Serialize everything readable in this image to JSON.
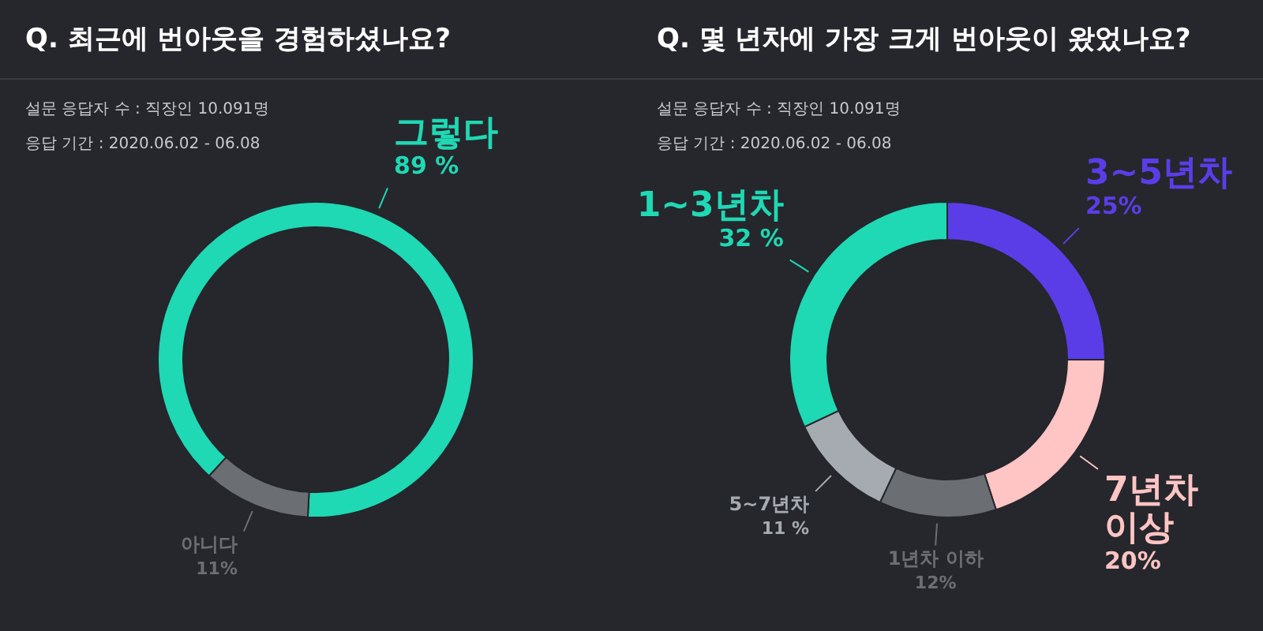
{
  "chart_data": [
    {
      "type": "donut",
      "title": "Q. 최근에 번아웃을 경험하셨나요?",
      "subtitle": "설문 응답자 수 : 직장인 10.091명",
      "annotations": [
        "응답 기간 : 2020.06.02 - 06.08"
      ],
      "categories": [
        "그렇다",
        "아니다"
      ],
      "values": [
        89,
        11
      ],
      "value_labels": [
        "89 %",
        "11%"
      ],
      "colors": [
        "#1fd8b4",
        "#6b6e73"
      ]
    },
    {
      "type": "donut",
      "title": "Q. 몇 년차에 가장 크게 번아웃이 왔었나요?",
      "subtitle": "설문 응답자 수 : 직장인 10.091명",
      "annotations": [
        "응답 기간 : 2020.06.02 - 06.08"
      ],
      "categories": [
        "3~5년차",
        "7년차 이상",
        "1년차 이하",
        "5~7년차",
        "1~3년차"
      ],
      "values": [
        25,
        20,
        12,
        11,
        32
      ],
      "value_labels": [
        "25%",
        "20%",
        "12%",
        "11 %",
        "32 %"
      ],
      "colors": [
        "#5b3de8",
        "#ffc4c4",
        "#6b6e73",
        "#a6abb2",
        "#1fd8b4"
      ]
    }
  ]
}
